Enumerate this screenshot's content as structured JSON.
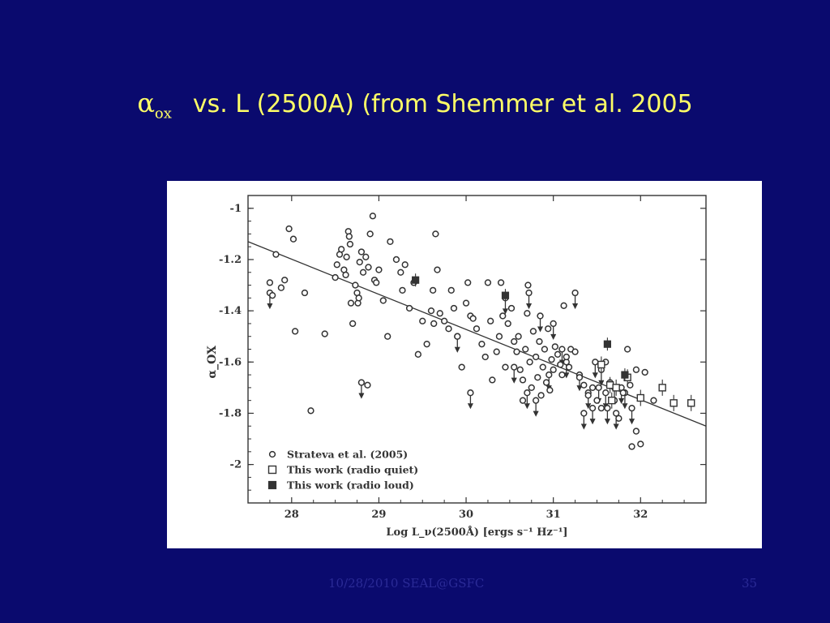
{
  "slide": {
    "title_symbol": "α",
    "title_symbol_subscript": "ox",
    "title_text": "vs.  L (2500A) (from Shemmer et al. 2005",
    "footer_left": "10/28/2010 SEAL@GSFC",
    "footer_page": "35"
  },
  "colors": {
    "background": "#0a0a6e",
    "title": "#ffff66",
    "footer": "#2a2a96",
    "plot_ink": "#333333"
  },
  "chart_data": {
    "type": "scatter",
    "xlabel": "Log L_ν(2500Å) [ergs s⁻¹ Hz⁻¹]",
    "ylabel": "α_OX",
    "xlim": [
      27.5,
      32.75
    ],
    "ylim": [
      -2.15,
      -0.95
    ],
    "xticks": [
      28,
      29,
      30,
      31,
      32
    ],
    "yticks": [
      -1,
      -1.2,
      -1.4,
      -1.6,
      -1.8,
      -2
    ],
    "grid": false,
    "legend_position": "bottom-left",
    "legend": [
      "Strateva et al. (2005)",
      "This work (radio quiet)",
      "This work (radio loud)"
    ],
    "fit_line": {
      "x": [
        27.5,
        32.75
      ],
      "y": [
        -1.13,
        -1.85
      ]
    },
    "series": [
      {
        "name": "Strateva et al. (2005)",
        "marker": "open-circle",
        "points": [
          [
            27.75,
            -1.29
          ],
          [
            27.78,
            -1.34
          ],
          [
            27.82,
            -1.18
          ],
          [
            27.88,
            -1.31
          ],
          [
            27.92,
            -1.28
          ],
          [
            27.97,
            -1.08
          ],
          [
            28.02,
            -1.12
          ],
          [
            28.04,
            -1.48
          ],
          [
            28.15,
            -1.33
          ],
          [
            28.22,
            -1.79
          ],
          [
            28.38,
            -1.49
          ],
          [
            28.5,
            -1.27
          ],
          [
            28.52,
            -1.22
          ],
          [
            28.55,
            -1.18
          ],
          [
            28.57,
            -1.16
          ],
          [
            28.6,
            -1.24
          ],
          [
            28.62,
            -1.26
          ],
          [
            28.63,
            -1.19
          ],
          [
            28.65,
            -1.09
          ],
          [
            28.66,
            -1.11
          ],
          [
            28.67,
            -1.14
          ],
          [
            28.68,
            -1.37
          ],
          [
            28.7,
            -1.45
          ],
          [
            28.73,
            -1.3
          ],
          [
            28.75,
            -1.33
          ],
          [
            28.76,
            -1.37
          ],
          [
            28.77,
            -1.35
          ],
          [
            28.78,
            -1.21
          ],
          [
            28.8,
            -1.17
          ],
          [
            28.82,
            -1.25
          ],
          [
            28.85,
            -1.19
          ],
          [
            28.87,
            -1.69
          ],
          [
            28.88,
            -1.23
          ],
          [
            28.9,
            -1.1
          ],
          [
            28.93,
            -1.03
          ],
          [
            28.95,
            -1.28
          ],
          [
            28.97,
            -1.29
          ],
          [
            29.0,
            -1.24
          ],
          [
            29.05,
            -1.36
          ],
          [
            29.1,
            -1.5
          ],
          [
            29.13,
            -1.13
          ],
          [
            29.2,
            -1.2
          ],
          [
            29.25,
            -1.25
          ],
          [
            29.27,
            -1.32
          ],
          [
            29.3,
            -1.22
          ],
          [
            29.35,
            -1.39
          ],
          [
            29.4,
            -1.29
          ],
          [
            29.45,
            -1.57
          ],
          [
            29.5,
            -1.44
          ],
          [
            29.55,
            -1.53
          ],
          [
            29.6,
            -1.4
          ],
          [
            29.62,
            -1.32
          ],
          [
            29.63,
            -1.45
          ],
          [
            29.65,
            -1.1
          ],
          [
            29.67,
            -1.24
          ],
          [
            29.7,
            -1.41
          ],
          [
            29.75,
            -1.44
          ],
          [
            29.8,
            -1.47
          ],
          [
            29.83,
            -1.32
          ],
          [
            29.86,
            -1.39
          ],
          [
            29.9,
            -1.5
          ],
          [
            29.95,
            -1.62
          ],
          [
            30.0,
            -1.37
          ],
          [
            30.02,
            -1.29
          ],
          [
            30.05,
            -1.42
          ],
          [
            30.08,
            -1.43
          ],
          [
            30.12,
            -1.47
          ],
          [
            30.18,
            -1.53
          ],
          [
            30.22,
            -1.58
          ],
          [
            30.25,
            -1.29
          ],
          [
            30.28,
            -1.44
          ],
          [
            30.3,
            -1.67
          ],
          [
            30.35,
            -1.56
          ],
          [
            30.38,
            -1.5
          ],
          [
            30.4,
            -1.29
          ],
          [
            30.42,
            -1.42
          ],
          [
            30.45,
            -1.62
          ],
          [
            30.48,
            -1.45
          ],
          [
            30.52,
            -1.39
          ],
          [
            30.55,
            -1.52
          ],
          [
            30.58,
            -1.56
          ],
          [
            30.6,
            -1.5
          ],
          [
            30.62,
            -1.63
          ],
          [
            30.65,
            -1.67
          ],
          [
            30.68,
            -1.55
          ],
          [
            30.7,
            -1.41
          ],
          [
            30.71,
            -1.3
          ],
          [
            30.73,
            -1.6
          ],
          [
            30.75,
            -1.7
          ],
          [
            30.77,
            -1.48
          ],
          [
            30.8,
            -1.58
          ],
          [
            30.82,
            -1.66
          ],
          [
            30.84,
            -1.52
          ],
          [
            30.86,
            -1.73
          ],
          [
            30.88,
            -1.62
          ],
          [
            30.9,
            -1.55
          ],
          [
            30.92,
            -1.68
          ],
          [
            30.94,
            -1.47
          ],
          [
            30.96,
            -1.71
          ],
          [
            30.98,
            -1.59
          ],
          [
            31.0,
            -1.63
          ],
          [
            31.02,
            -1.54
          ],
          [
            31.05,
            -1.57
          ],
          [
            31.08,
            -1.61
          ],
          [
            31.1,
            -1.65
          ],
          [
            31.12,
            -1.38
          ],
          [
            31.15,
            -1.58
          ],
          [
            31.18,
            -1.62
          ],
          [
            31.2,
            -1.55
          ],
          [
            31.25,
            -1.56
          ],
          [
            31.3,
            -1.66
          ],
          [
            31.35,
            -1.69
          ],
          [
            31.4,
            -1.73
          ],
          [
            31.45,
            -1.7
          ],
          [
            31.5,
            -1.75
          ],
          [
            31.55,
            -1.78
          ],
          [
            31.6,
            -1.6
          ],
          [
            31.65,
            -1.68
          ],
          [
            31.7,
            -1.75
          ],
          [
            31.75,
            -1.82
          ],
          [
            31.8,
            -1.72
          ],
          [
            31.85,
            -1.55
          ],
          [
            31.88,
            -1.69
          ],
          [
            31.9,
            -1.93
          ],
          [
            31.95,
            -1.63
          ],
          [
            32.0,
            -1.92
          ],
          [
            32.05,
            -1.64
          ],
          [
            32.15,
            -1.75
          ],
          [
            31.95,
            -1.87
          ],
          [
            30.65,
            -1.75
          ]
        ],
        "upper_limits": [
          [
            27.75,
            -1.33
          ],
          [
            28.8,
            -1.68
          ],
          [
            30.05,
            -1.72
          ],
          [
            29.9,
            -1.5
          ],
          [
            30.45,
            -1.35
          ],
          [
            30.72,
            -1.33
          ],
          [
            30.85,
            -1.42
          ],
          [
            31.0,
            -1.45
          ],
          [
            31.25,
            -1.33
          ],
          [
            31.3,
            -1.65
          ],
          [
            31.48,
            -1.6
          ],
          [
            31.52,
            -1.7
          ],
          [
            31.55,
            -1.63
          ],
          [
            31.6,
            -1.72
          ],
          [
            31.62,
            -1.78
          ],
          [
            31.7,
            -1.7
          ],
          [
            31.72,
            -1.8
          ],
          [
            31.78,
            -1.7
          ],
          [
            31.82,
            -1.72
          ],
          [
            31.9,
            -1.78
          ],
          [
            31.35,
            -1.8
          ],
          [
            30.95,
            -1.65
          ],
          [
            30.8,
            -1.75
          ],
          [
            30.7,
            -1.72
          ],
          [
            30.55,
            -1.62
          ],
          [
            31.1,
            -1.55
          ],
          [
            31.15,
            -1.6
          ],
          [
            31.4,
            -1.72
          ],
          [
            31.45,
            -1.78
          ]
        ]
      },
      {
        "name": "This work (radio quiet)",
        "marker": "open-square",
        "points": [
          [
            31.55,
            -1.61
          ],
          [
            31.65,
            -1.69
          ],
          [
            31.67,
            -1.75
          ],
          [
            31.72,
            -1.7
          ],
          [
            31.85,
            -1.66
          ],
          [
            32.0,
            -1.74
          ],
          [
            32.25,
            -1.7
          ],
          [
            32.38,
            -1.76
          ],
          [
            32.58,
            -1.76
          ]
        ]
      },
      {
        "name": "This work (radio loud)",
        "marker": "filled-square",
        "points": [
          [
            29.42,
            -1.28
          ],
          [
            30.45,
            -1.34
          ],
          [
            31.62,
            -1.53
          ],
          [
            31.82,
            -1.65
          ]
        ]
      }
    ]
  }
}
